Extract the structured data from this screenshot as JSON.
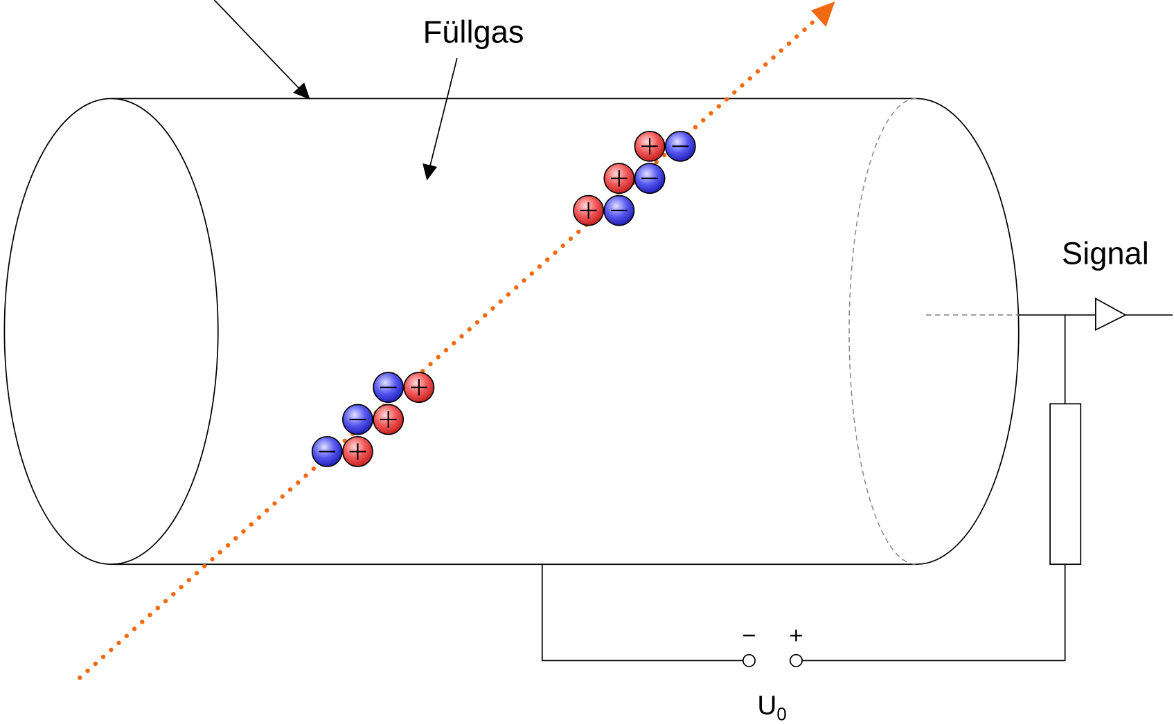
{
  "labels": {
    "fill_gas": "Füllgas",
    "signal": "Signal",
    "voltage": "U",
    "voltage_subscript": "0",
    "minus": "−",
    "plus": "+"
  }
}
